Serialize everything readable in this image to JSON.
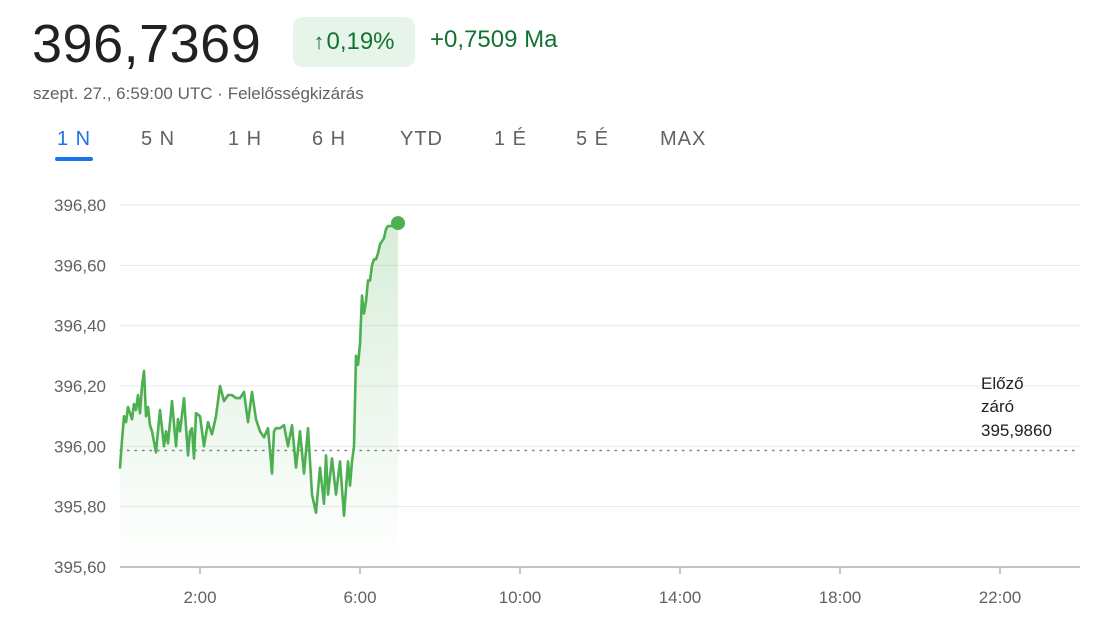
{
  "header": {
    "price": "396,7369",
    "change_pct": "0,19%",
    "change_arrow": "↑",
    "change_abs": "+0,7509 Ma",
    "timestamp": "szept. 27., 6:59:00 UTC",
    "separator": "·",
    "disclaimer": "Felelősségkizárás"
  },
  "tabs": [
    {
      "label": "1 N",
      "active": true
    },
    {
      "label": "5 N",
      "active": false
    },
    {
      "label": "1 H",
      "active": false
    },
    {
      "label": "6 H",
      "active": false
    },
    {
      "label": "YTD",
      "active": false
    },
    {
      "label": "1 É",
      "active": false
    },
    {
      "label": "5 É",
      "active": false
    },
    {
      "label": "MAX",
      "active": false
    }
  ],
  "colors": {
    "line": "#4caf50",
    "positive": "#137333",
    "accent": "#1a73e8",
    "grid": "#e8eaed"
  },
  "chart_data": {
    "type": "line",
    "x_unit": "hours (UTC)",
    "xlim": [
      0.0,
      24.0
    ],
    "ylim": [
      395.6,
      396.8
    ],
    "y_ticks": [
      395.6,
      395.8,
      396.0,
      396.2,
      396.4,
      396.6,
      396.8
    ],
    "y_tick_labels": [
      "395,60",
      "395,80",
      "396,00",
      "396,20",
      "396,40",
      "396,60",
      "396,80"
    ],
    "x_ticks": [
      2,
      6,
      10,
      14,
      18,
      22
    ],
    "x_tick_labels": [
      "2:00",
      "6:00",
      "10:00",
      "14:00",
      "18:00",
      "22:00"
    ],
    "grid": true,
    "previous_close": {
      "value": 395.986,
      "label_line1": "Előző",
      "label_line2": "záró",
      "label_value": "395,9860"
    },
    "series": [
      {
        "x": [
          0.0,
          0.05,
          0.1,
          0.15,
          0.2,
          0.25,
          0.3,
          0.35,
          0.4,
          0.45,
          0.5,
          0.55,
          0.6,
          0.65,
          0.7,
          0.75,
          0.8,
          0.9,
          1.0,
          1.05,
          1.1,
          1.15,
          1.2,
          1.3,
          1.4,
          1.45,
          1.5,
          1.6,
          1.7,
          1.75,
          1.8,
          1.85,
          1.9,
          2.0,
          2.1,
          2.2,
          2.3,
          2.4,
          2.5,
          2.6,
          2.7,
          2.8,
          2.9,
          3.0,
          3.1,
          3.2,
          3.3,
          3.4,
          3.5,
          3.6,
          3.7,
          3.8,
          3.85,
          3.9,
          3.95,
          4.0,
          4.1,
          4.2,
          4.3,
          4.4,
          4.5,
          4.6,
          4.7,
          4.8,
          4.9,
          5.0,
          5.1,
          5.15,
          5.2,
          5.3,
          5.4,
          5.5,
          5.6,
          5.7,
          5.75,
          5.8,
          5.85,
          5.9,
          5.95,
          6.0,
          6.05,
          6.1,
          6.15,
          6.2,
          6.25,
          6.3,
          6.35,
          6.4,
          6.45,
          6.5,
          6.55,
          6.6,
          6.65,
          6.7,
          6.75,
          6.8,
          6.85,
          6.9,
          6.95
        ],
        "values": [
          395.93,
          396.02,
          396.1,
          396.08,
          396.13,
          396.11,
          396.09,
          396.14,
          396.12,
          396.17,
          396.11,
          396.2,
          396.25,
          396.1,
          396.13,
          396.07,
          396.05,
          395.98,
          396.12,
          396.06,
          396.0,
          396.05,
          396.01,
          396.15,
          396.0,
          396.09,
          396.05,
          396.16,
          395.97,
          396.05,
          396.06,
          395.96,
          396.11,
          396.1,
          396.0,
          396.08,
          396.04,
          396.1,
          396.2,
          396.15,
          396.17,
          396.17,
          396.16,
          396.16,
          396.18,
          396.08,
          396.18,
          396.09,
          396.05,
          396.03,
          396.06,
          395.91,
          396.05,
          396.06,
          396.06,
          396.06,
          396.07,
          396.0,
          396.07,
          395.93,
          396.05,
          395.91,
          396.06,
          395.84,
          395.78,
          395.93,
          395.81,
          395.97,
          395.84,
          395.96,
          395.84,
          395.95,
          395.77,
          395.95,
          395.87,
          395.95,
          396.0,
          396.3,
          396.27,
          396.34,
          396.5,
          396.44,
          396.48,
          396.55,
          396.55,
          396.6,
          396.62,
          396.62,
          396.64,
          396.67,
          396.68,
          396.69,
          396.72,
          396.73,
          396.73,
          396.73,
          396.74,
          396.74,
          396.74
        ]
      }
    ]
  }
}
